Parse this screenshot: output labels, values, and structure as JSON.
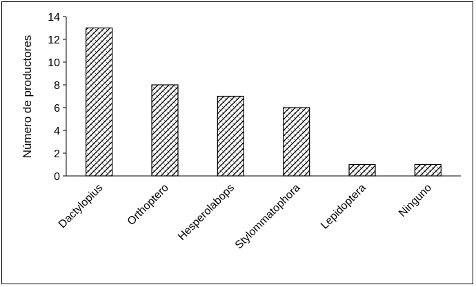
{
  "chart_data": {
    "type": "bar",
    "title": "",
    "xlabel": "",
    "ylabel": "Número de productores",
    "categories": [
      "Dactylopius",
      "Orthoptero",
      "Hesperolabops",
      "Stylommatophora",
      "Lepidoptera",
      "Ninguno"
    ],
    "values": [
      13,
      8,
      7,
      6,
      1,
      1
    ],
    "ylim": [
      0,
      14
    ],
    "yticks": [
      0,
      2,
      4,
      6,
      8,
      10,
      12,
      14
    ],
    "grid": false,
    "legend": "none",
    "bar_fill": "diagonal-crosshatch",
    "colors": {
      "bar_stroke": "#000000",
      "bar_pattern": "#000000",
      "background": "#ffffff"
    }
  }
}
